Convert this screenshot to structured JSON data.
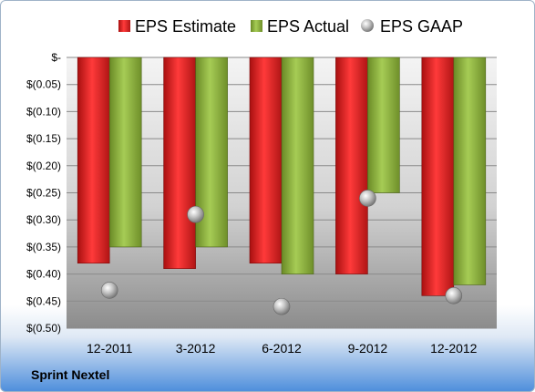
{
  "company": "Sprint Nextel",
  "chart_data": {
    "type": "bar",
    "categories": [
      "12-2011",
      "3-2012",
      "6-2012",
      "9-2012",
      "12-2012"
    ],
    "series": [
      {
        "name": "EPS Estimate",
        "kind": "bar",
        "color": "#e02020",
        "values": [
          -0.38,
          -0.39,
          -0.38,
          -0.4,
          -0.44
        ]
      },
      {
        "name": "EPS Actual",
        "kind": "bar",
        "color": "#8db23e",
        "values": [
          -0.35,
          -0.35,
          -0.4,
          -0.25,
          -0.42
        ]
      },
      {
        "name": "EPS GAAP",
        "kind": "scatter",
        "color": "#a0a0a0",
        "values": [
          -0.43,
          -0.29,
          -0.46,
          -0.26,
          -0.44
        ]
      }
    ],
    "ylim": [
      -0.5,
      0
    ],
    "yticks": [
      0,
      -0.05,
      -0.1,
      -0.15,
      -0.2,
      -0.25,
      -0.3,
      -0.35,
      -0.4,
      -0.45,
      -0.5
    ],
    "ytick_labels": [
      "$-",
      "$(0.05)",
      "$(0.10)",
      "$(0.15)",
      "$(0.20)",
      "$(0.25)",
      "$(0.30)",
      "$(0.35)",
      "$(0.40)",
      "$(0.45)",
      "$(0.50)"
    ],
    "grid": true,
    "legend_position": "top"
  }
}
